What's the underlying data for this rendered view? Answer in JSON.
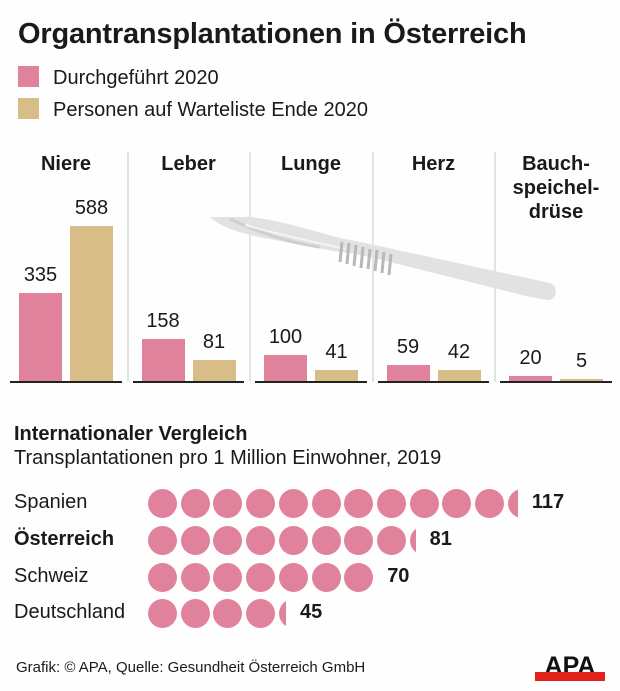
{
  "chart_data": [
    {
      "type": "bar",
      "title": "Organtransplantationen in Österreich",
      "categories": [
        "Niere",
        "Leber",
        "Lunge",
        "Herz",
        "Bauch-\nspeichel-\ndrüse"
      ],
      "series": [
        {
          "name": "Durchgeführt 2020",
          "color": "#e0829c",
          "values": [
            335,
            158,
            100,
            59,
            20
          ]
        },
        {
          "name": "Personen auf Warteliste Ende 2020",
          "color": "#d8bd88",
          "values": [
            588,
            81,
            41,
            42,
            5
          ]
        }
      ],
      "xlabel": "",
      "ylabel": "",
      "ylim": [
        0,
        600
      ],
      "grid": false,
      "legend": "top-left"
    },
    {
      "type": "bar",
      "subtype": "dot-pictogram",
      "title": "Internationaler Vergleich",
      "subtitle": "Transplantationen pro 1 Million Einwohner, 2019",
      "categories": [
        "Spanien",
        "Österreich",
        "Schweiz",
        "Deutschland"
      ],
      "highlight": "Österreich",
      "values": [
        117,
        81,
        70,
        45
      ],
      "units_per_dot": 10,
      "color": "#e0829c"
    }
  ],
  "title": "Organtransplantationen in Österreich",
  "legend": [
    {
      "label": "Durchgeführt 2020",
      "color": "#e0829c"
    },
    {
      "label": "Personen auf Warteliste Ende 2020",
      "color": "#d8bd88"
    }
  ],
  "organs": [
    {
      "label": "Niere",
      "done": "335",
      "wait": "588"
    },
    {
      "label": "Leber",
      "done": "158",
      "wait": "81"
    },
    {
      "label": "Lunge",
      "done": "100",
      "wait": "41"
    },
    {
      "label": "Herz",
      "done": "59",
      "wait": "42"
    },
    {
      "label": "Bauch-\nspeichel-\ndrüse",
      "done": "20",
      "wait": "5"
    }
  ],
  "comparison": {
    "title": "Internationaler Vergleich",
    "subtitle": "Transplantationen pro 1 Million Einwohner, 2019",
    "rows": [
      {
        "country": "Spanien",
        "value": "117"
      },
      {
        "country": "Österreich",
        "value": "81"
      },
      {
        "country": "Schweiz",
        "value": "70"
      },
      {
        "country": "Deutschland",
        "value": "45"
      }
    ]
  },
  "footer": {
    "credit": "Grafik: © APA, Quelle: Gesundheit Österreich GmbH",
    "logo_text": "APA",
    "logo_colors": {
      "text": "#111111",
      "bar": "#e2231a"
    }
  },
  "illustration": "scalpel-icon"
}
